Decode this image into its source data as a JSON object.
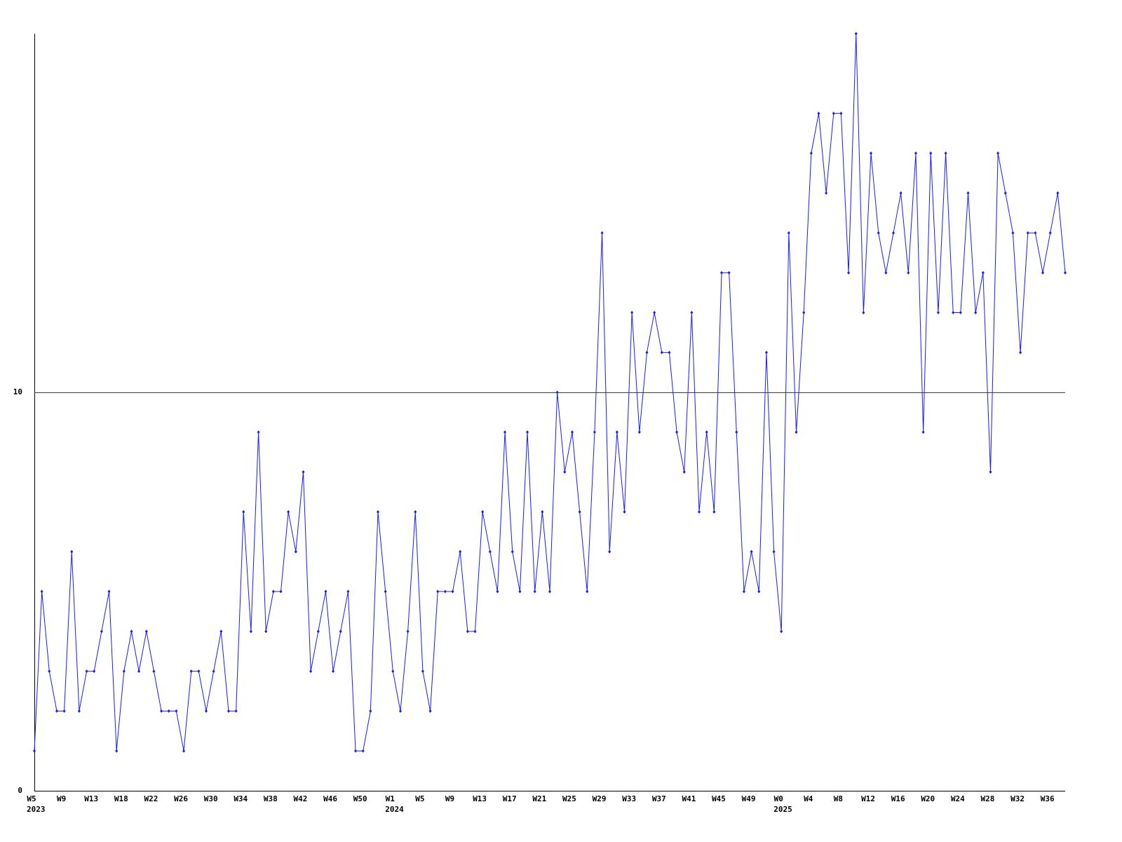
{
  "chart_data": {
    "type": "line",
    "categories": [
      "W5",
      null,
      null,
      null,
      "W9",
      null,
      null,
      null,
      "W13",
      null,
      null,
      null,
      "W18",
      null,
      null,
      null,
      "W22",
      null,
      null,
      null,
      "W26",
      null,
      null,
      null,
      "W30",
      null,
      null,
      null,
      "W34",
      null,
      null,
      null,
      "W38",
      null,
      null,
      null,
      "W42",
      null,
      null,
      null,
      "W46",
      null,
      null,
      null,
      "W50",
      null,
      null,
      null,
      "W1",
      null,
      null,
      null,
      "W5",
      null,
      null,
      null,
      "W9",
      null,
      null,
      null,
      "W13",
      null,
      null,
      null,
      "W17",
      null,
      null,
      null,
      "W21",
      null,
      null,
      null,
      "W25",
      null,
      null,
      null,
      "W29",
      null,
      null,
      null,
      "W33",
      null,
      null,
      null,
      "W37",
      null,
      null,
      null,
      "W41",
      null,
      null,
      null,
      "W45",
      null,
      null,
      null,
      "W49",
      null,
      null,
      null,
      "W0",
      null,
      null,
      null,
      "W4",
      null,
      null,
      null,
      "W8",
      null,
      null,
      null,
      "W12",
      null,
      null,
      null,
      "W16",
      null,
      null,
      null,
      "W20",
      null,
      null,
      null,
      "W24",
      null,
      null,
      null,
      "W28",
      null,
      null,
      null,
      "W32",
      null,
      null,
      null,
      "W36",
      null,
      null
    ],
    "year_labels": [
      "2023",
      null,
      null,
      null,
      null,
      null,
      null,
      null,
      null,
      null,
      null,
      null,
      null,
      null,
      null,
      null,
      null,
      null,
      null,
      null,
      null,
      null,
      null,
      null,
      null,
      null,
      null,
      null,
      null,
      null,
      null,
      null,
      null,
      null,
      null,
      null,
      null,
      null,
      null,
      null,
      null,
      null,
      null,
      null,
      null,
      null,
      null,
      null,
      "2024",
      null,
      null,
      null,
      null,
      null,
      null,
      null,
      null,
      null,
      null,
      null,
      null,
      null,
      null,
      null,
      null,
      null,
      null,
      null,
      null,
      null,
      null,
      null,
      null,
      null,
      null,
      null,
      null,
      null,
      null,
      null,
      null,
      null,
      null,
      null,
      null,
      null,
      null,
      null,
      null,
      null,
      null,
      null,
      null,
      null,
      null,
      null,
      null,
      null,
      null,
      null,
      "2025",
      null,
      null,
      null,
      null,
      null,
      null,
      null,
      null,
      null,
      null,
      null,
      null,
      null,
      null,
      null,
      null,
      null,
      null,
      null,
      null,
      null,
      null,
      null,
      null,
      null,
      null,
      null,
      null,
      null,
      null,
      null,
      null,
      null,
      null,
      null,
      null,
      null,
      null
    ],
    "values": [
      1,
      5,
      3,
      2,
      2,
      6,
      2,
      3,
      3,
      4,
      5,
      1,
      3,
      4,
      3,
      4,
      3,
      2,
      2,
      2,
      1,
      3,
      3,
      2,
      3,
      4,
      2,
      2,
      7,
      4,
      9,
      4,
      5,
      5,
      7,
      6,
      8,
      3,
      4,
      5,
      3,
      4,
      5,
      1,
      1,
      2,
      7,
      5,
      3,
      2,
      4,
      7,
      3,
      2,
      5,
      5,
      5,
      6,
      4,
      4,
      7,
      6,
      5,
      9,
      6,
      5,
      9,
      5,
      7,
      5,
      10,
      8,
      9,
      7,
      5,
      9,
      14,
      6,
      9,
      7,
      12,
      9,
      11,
      12,
      11,
      11,
      9,
      8,
      12,
      7,
      9,
      7,
      13,
      13,
      9,
      5,
      6,
      5,
      11,
      6,
      4,
      14,
      9,
      12,
      16,
      17,
      15,
      17,
      17,
      13,
      19,
      12,
      16,
      14,
      13,
      14,
      15,
      13,
      16,
      9,
      16,
      12,
      16,
      12,
      12,
      15,
      12,
      13,
      8,
      16,
      15,
      14,
      11,
      14,
      14,
      13,
      14,
      15,
      13
    ],
    "color": "#1a1aff",
    "ylim": [
      0,
      19
    ],
    "yticks": [
      0,
      10
    ],
    "grid": true
  }
}
